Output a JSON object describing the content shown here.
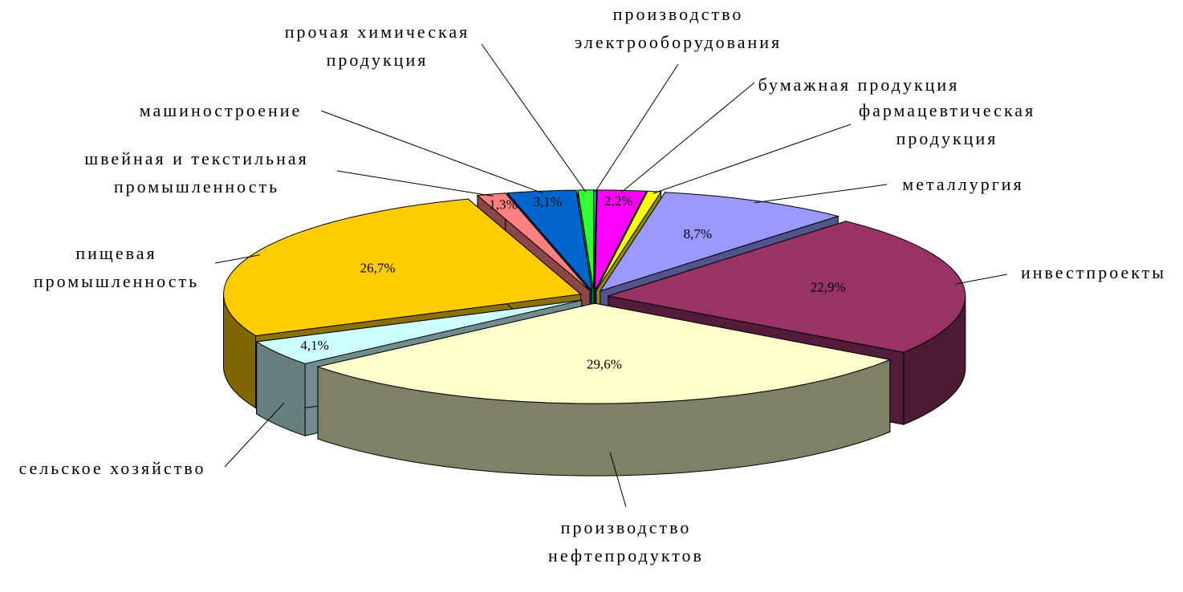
{
  "chart_data": {
    "type": "pie3d",
    "categories": [
      "производство электрооборудования",
      "бумажная продукция",
      "фармацевтическая продукция",
      "металлургия",
      "инвестпроекты",
      "производство нефтепродуктов",
      "сельское хозяйство",
      "пищевая промышленность",
      "швейная и текстильная промышленность",
      "машиностроение",
      "прочая химическая продукция"
    ],
    "values": [
      0.1,
      2.2,
      0.6,
      8.7,
      22.9,
      29.6,
      4.1,
      26.7,
      1.3,
      3.1,
      0.7
    ],
    "value_labels": [
      null,
      "2,2%",
      null,
      "8,7%",
      "22,9%",
      "29,6%",
      "4,1%",
      "26,7%",
      "1,3%",
      "3,1%",
      null
    ],
    "colors": [
      "#00ffff",
      "#ff00ff",
      "#ffff00",
      "#9999ff",
      "#993366",
      "#ffffcc",
      "#ccffff",
      "#ffcc00",
      "#ff8080",
      "#0066cc",
      "#33ff33"
    ]
  }
}
